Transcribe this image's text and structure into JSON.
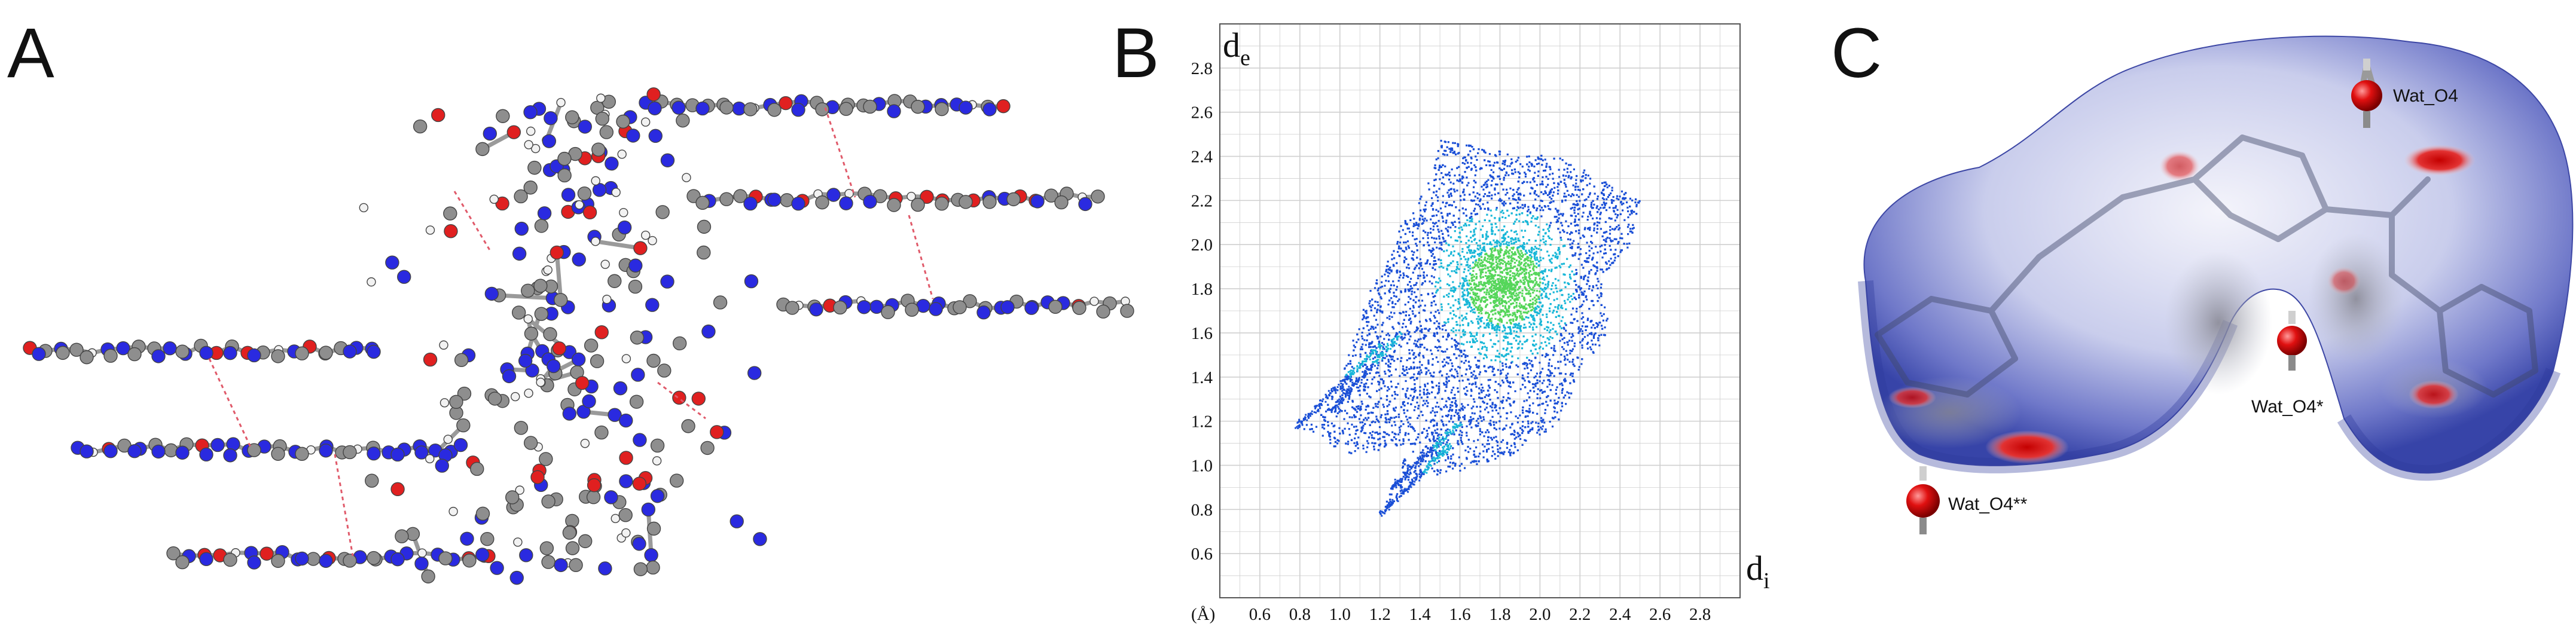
{
  "figure": {
    "panels": [
      {
        "letter": "A"
      },
      {
        "letter": "B"
      },
      {
        "letter": "C"
      }
    ]
  },
  "panel_a": {
    "description_label": "crystal packing"
  },
  "panel_c": {
    "water_labels": [
      "Wat_O4",
      "Wat_O4*",
      "Wat_O4**"
    ]
  },
  "chart_data": {
    "type": "scatter",
    "title": "",
    "xlabel_main": "d",
    "xlabel_sub": "i",
    "ylabel_main": "d",
    "ylabel_sub": "e",
    "unit_label": "(Å)",
    "xlim": [
      0.4,
      3.0
    ],
    "ylim": [
      0.4,
      3.0
    ],
    "x_ticks": [
      "0.6",
      "0.8",
      "1.0",
      "1.2",
      "1.4",
      "1.6",
      "1.8",
      "2.0",
      "2.2",
      "2.4",
      "2.6",
      "2.8"
    ],
    "y_ticks": [
      "0.6",
      "0.8",
      "1.0",
      "1.2",
      "1.4",
      "1.6",
      "1.8",
      "2.0",
      "2.2",
      "2.4",
      "2.6",
      "2.8"
    ],
    "x_tick_values": [
      0.6,
      0.8,
      1.0,
      1.2,
      1.4,
      1.6,
      1.8,
      2.0,
      2.2,
      2.4,
      2.6,
      2.8
    ],
    "y_tick_values": [
      0.6,
      0.8,
      1.0,
      1.2,
      1.4,
      1.6,
      1.8,
      2.0,
      2.2,
      2.4,
      2.6,
      2.8
    ],
    "grid": true,
    "density_peak": {
      "x": 1.82,
      "y": 1.82
    },
    "outline": [
      [
        0.78,
        1.18
      ],
      [
        1.0,
        1.4
      ],
      [
        1.05,
        1.55
      ],
      [
        1.15,
        1.8
      ],
      [
        1.25,
        1.95
      ],
      [
        1.3,
        2.1
      ],
      [
        1.45,
        2.3
      ],
      [
        1.5,
        2.48
      ],
      [
        1.7,
        2.45
      ],
      [
        1.9,
        2.4
      ],
      [
        2.05,
        2.42
      ],
      [
        2.2,
        2.35
      ],
      [
        2.3,
        2.3
      ],
      [
        2.5,
        2.2
      ],
      [
        2.45,
        2.0
      ],
      [
        2.3,
        1.85
      ],
      [
        2.35,
        1.6
      ],
      [
        2.2,
        1.45
      ],
      [
        2.1,
        1.2
      ],
      [
        1.85,
        1.05
      ],
      [
        1.6,
        0.98
      ],
      [
        1.4,
        0.95
      ],
      [
        1.2,
        0.78
      ],
      [
        1.35,
        1.1
      ],
      [
        1.05,
        1.05
      ]
    ],
    "spikes": [
      {
        "from": [
          0.78,
          1.18
        ],
        "to": [
          1.2,
          1.55
        ]
      },
      {
        "from": [
          0.95,
          1.25
        ],
        "to": [
          1.3,
          1.6
        ]
      },
      {
        "from": [
          1.2,
          0.78
        ],
        "to": [
          1.55,
          1.1
        ]
      },
      {
        "from": [
          1.25,
          0.9
        ],
        "to": [
          1.6,
          1.2
        ]
      }
    ]
  },
  "colors": {
    "text": "#111111",
    "grid": "#cfcfcf",
    "frame": "#555555",
    "fp_low": "#1a4fd6",
    "fp_mid": "#19b7d8",
    "fp_high": "#55d65a"
  }
}
